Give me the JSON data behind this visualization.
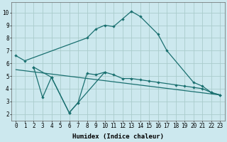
{
  "xlabel": "Humidex (Indice chaleur)",
  "bg_color": "#cce8ee",
  "grid_color": "#aacccc",
  "line_color": "#1a7070",
  "xlim": [
    -0.5,
    23.5
  ],
  "ylim": [
    1.5,
    10.8
  ],
  "xticks": [
    0,
    1,
    2,
    3,
    4,
    5,
    6,
    7,
    8,
    9,
    10,
    11,
    12,
    13,
    14,
    15,
    16,
    17,
    18,
    19,
    20,
    21,
    22,
    23
  ],
  "yticks": [
    2,
    3,
    4,
    5,
    6,
    7,
    8,
    9,
    10
  ],
  "curve1_x": [
    0,
    1,
    8,
    9,
    10,
    11,
    12,
    13,
    14,
    16,
    17,
    20,
    21,
    22,
    23
  ],
  "curve1_y": [
    6.6,
    6.2,
    8.0,
    8.7,
    9.0,
    8.9,
    9.5,
    10.1,
    9.7,
    8.3,
    7.0,
    4.5,
    4.2,
    3.7,
    3.5
  ],
  "curve2_x": [
    2,
    4,
    6,
    7,
    10
  ],
  "curve2_y": [
    5.7,
    4.9,
    2.1,
    2.9,
    5.3
  ],
  "curve3_x": [
    2,
    3,
    4,
    6,
    7,
    8,
    9,
    10,
    11,
    12,
    13,
    14,
    15,
    16,
    18,
    19,
    20,
    21,
    22,
    23
  ],
  "curve3_y": [
    5.7,
    3.3,
    4.9,
    2.1,
    2.9,
    5.2,
    5.1,
    5.3,
    5.1,
    4.8,
    4.8,
    4.7,
    4.6,
    4.5,
    4.3,
    4.2,
    4.1,
    4.0,
    3.7,
    3.5
  ],
  "line4_x": [
    0,
    23
  ],
  "line4_y": [
    5.5,
    3.5
  ],
  "tick_fontsize": 5.5,
  "xlabel_fontsize": 6.5
}
